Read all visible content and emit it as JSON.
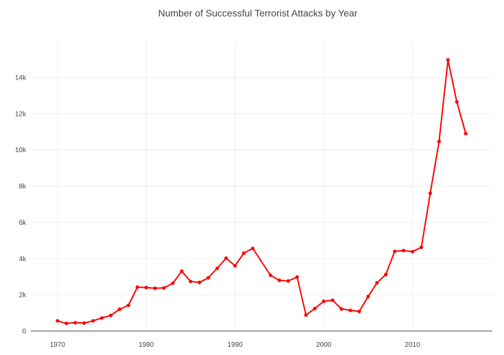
{
  "colors": {
    "series": "#ff0000",
    "grid": "#eeeeee",
    "axis_line": "#444444",
    "text": "#444444"
  },
  "chart_data": {
    "type": "line",
    "title": "Number of Successful Terrorist Attacks by Year",
    "xlabel": "",
    "ylabel": "",
    "xlim": [
      1967,
      2019
    ],
    "ylim": [
      0,
      16000
    ],
    "grid": true,
    "x_ticks": [
      1970,
      1980,
      1990,
      2000,
      2010
    ],
    "x_tick_labels": [
      "1970",
      "1980",
      "1990",
      "2000",
      "2010"
    ],
    "y_ticks": [
      0,
      2000,
      4000,
      6000,
      8000,
      10000,
      12000,
      14000
    ],
    "y_tick_labels": [
      "0",
      "2k",
      "4k",
      "6k",
      "8k",
      "10k",
      "12k",
      "14k"
    ],
    "series": [
      {
        "x": [
          1970,
          1971,
          1972,
          1973,
          1974,
          1975,
          1976,
          1977,
          1978,
          1979,
          1980,
          1981,
          1982,
          1983,
          1984,
          1985,
          1986,
          1987,
          1988,
          1989,
          1990,
          1991,
          1992,
          1994,
          1995,
          1996,
          1997,
          1998,
          1999,
          2000,
          2001,
          2002,
          2003,
          2004,
          2005,
          2006,
          2007,
          2008,
          2009,
          2010,
          2011,
          2012,
          2013,
          2014,
          2015,
          2016
        ],
        "y": [
          560,
          420,
          460,
          440,
          560,
          720,
          860,
          1200,
          1420,
          2420,
          2400,
          2360,
          2380,
          2640,
          3300,
          2740,
          2680,
          2940,
          3460,
          4020,
          3600,
          4300,
          4560,
          3080,
          2800,
          2760,
          2980,
          880,
          1240,
          1640,
          1700,
          1220,
          1140,
          1080,
          1900,
          2660,
          3120,
          4400,
          4440,
          4380,
          4620,
          7600,
          10460,
          14960,
          12640,
          10900
        ]
      }
    ]
  }
}
